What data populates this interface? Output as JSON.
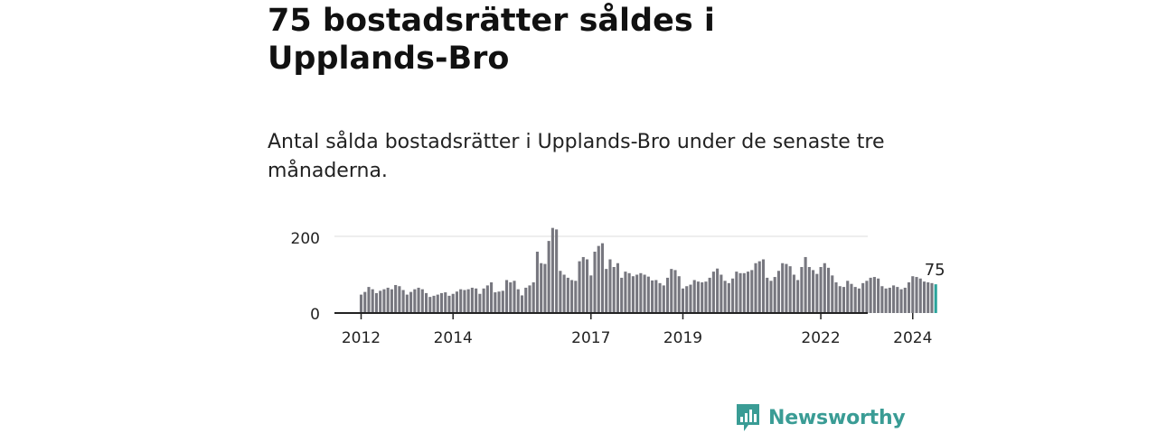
{
  "header": {
    "title": "75 bostadsrätter såldes i Upplands-Bro",
    "subtitle": "Antal sålda bostadsrätter i Upplands-Bro under de senaste tre månaderna."
  },
  "brand": {
    "name": "Newsworthy",
    "icon": "bar-chart-speech-bubble-icon",
    "color": "#3a9c95"
  },
  "chart_data": {
    "type": "bar",
    "start": "2012-01",
    "x_ticks": [
      "2012",
      "2014",
      "2017",
      "2019",
      "2022",
      "2024"
    ],
    "y_ticks": [
      0,
      200
    ],
    "ylim": [
      0,
      230
    ],
    "grid": true,
    "annotation": "75",
    "colors": {
      "bar": "#77777f",
      "highlight": "#2aa39b",
      "grid": "#dddddd",
      "axis": "#222222"
    },
    "values": [
      48,
      55,
      68,
      62,
      52,
      58,
      62,
      66,
      62,
      73,
      70,
      60,
      48,
      55,
      62,
      66,
      62,
      52,
      42,
      45,
      48,
      52,
      54,
      45,
      50,
      56,
      62,
      60,
      62,
      66,
      64,
      50,
      64,
      72,
      80,
      54,
      56,
      58,
      86,
      80,
      84,
      62,
      46,
      66,
      72,
      80,
      160,
      130,
      128,
      188,
      222,
      218,
      110,
      100,
      92,
      86,
      84,
      135,
      146,
      140,
      98,
      160,
      175,
      182,
      115,
      140,
      120,
      130,
      92,
      108,
      104,
      96,
      100,
      104,
      100,
      95,
      85,
      86,
      78,
      72,
      92,
      115,
      112,
      96,
      64,
      70,
      74,
      86,
      82,
      80,
      82,
      92,
      108,
      116,
      100,
      84,
      78,
      90,
      108,
      104,
      104,
      108,
      112,
      130,
      135,
      140,
      92,
      84,
      94,
      110,
      130,
      128,
      122,
      100,
      86,
      120,
      146,
      120,
      112,
      102,
      120,
      130,
      118,
      98,
      80,
      70,
      68,
      84,
      76,
      68,
      64,
      78,
      84,
      92,
      94,
      90,
      70,
      64,
      66,
      72,
      68,
      62,
      66,
      80,
      96,
      94,
      90,
      82,
      80,
      78,
      75
    ]
  }
}
